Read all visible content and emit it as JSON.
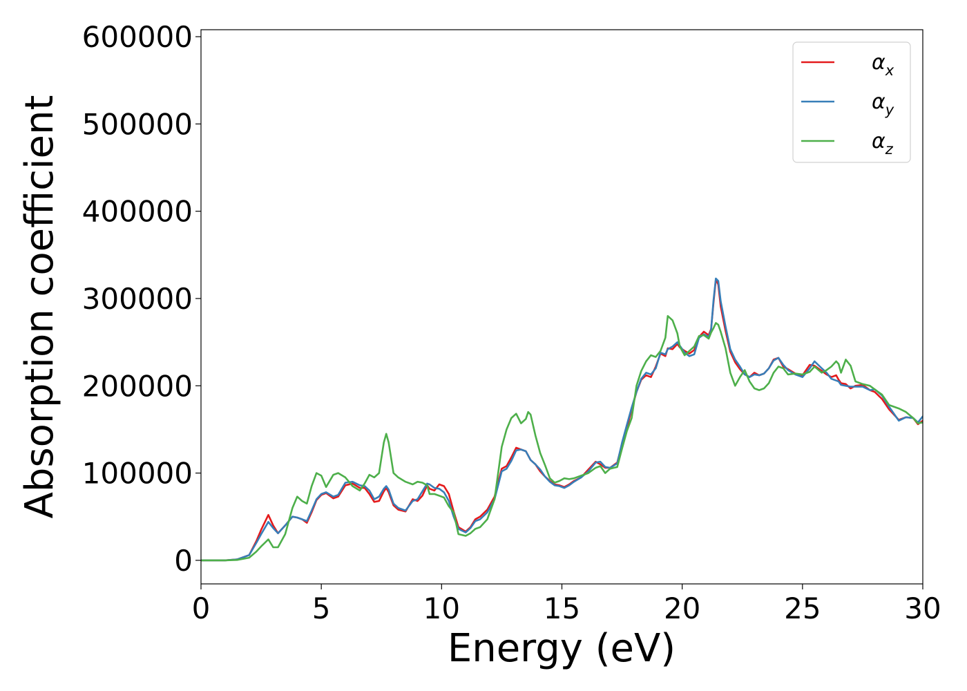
{
  "chart_data": {
    "type": "line",
    "title": "",
    "xlabel": "Energy (eV)",
    "ylabel": "Absorption coefficient",
    "xlim": [
      0,
      30
    ],
    "ylim": [
      -27000,
      608000
    ],
    "xticks": [
      0,
      5,
      10,
      15,
      20,
      25,
      30
    ],
    "xtick_labels": [
      "0",
      "5",
      "10",
      "15",
      "20",
      "25",
      "30"
    ],
    "yticks": [
      0,
      100000,
      200000,
      300000,
      400000,
      500000,
      600000
    ],
    "ytick_labels": [
      "0",
      "100000",
      "200000",
      "300000",
      "400000",
      "500000",
      "600000"
    ],
    "grid": false,
    "legend_position": "top-right",
    "x": [
      0,
      1,
      1.5,
      2,
      2.3,
      2.5,
      2.8,
      3,
      3.2,
      3.5,
      3.8,
      4,
      4.2,
      4.4,
      4.6,
      4.8,
      5,
      5.2,
      5.5,
      5.7,
      6,
      6.3,
      6.6,
      6.8,
      7,
      7.2,
      7.4,
      7.6,
      7.7,
      7.8,
      8,
      8.2,
      8.5,
      8.8,
      9,
      9.2,
      9.4,
      9.5,
      9.7,
      9.9,
      10.1,
      10.3,
      10.5,
      10.7,
      11,
      11.2,
      11.4,
      11.6,
      11.9,
      12.2,
      12.5,
      12.7,
      12.9,
      13.1,
      13.3,
      13.5,
      13.6,
      13.7,
      13.9,
      14.1,
      14.3,
      14.5,
      14.7,
      14.9,
      15.1,
      15.3,
      15.5,
      15.8,
      16.1,
      16.4,
      16.6,
      16.8,
      17,
      17.3,
      17.5,
      17.7,
      17.9,
      18.1,
      18.3,
      18.5,
      18.7,
      18.9,
      19.1,
      19.3,
      19.4,
      19.6,
      19.8,
      19.9,
      20.1,
      20.3,
      20.5,
      20.7,
      20.9,
      21.1,
      21.2,
      21.3,
      21.4,
      21.5,
      21.6,
      21.8,
      22,
      22.2,
      22.4,
      22.6,
      22.8,
      23,
      23.2,
      23.4,
      23.6,
      23.8,
      24,
      24.2,
      24.4,
      24.7,
      25,
      25.3,
      25.5,
      25.8,
      26,
      26.2,
      26.4,
      26.5,
      26.6,
      26.8,
      27,
      27.2,
      27.5,
      27.8,
      28,
      28.3,
      28.6,
      29,
      29.3,
      29.6,
      29.8,
      30
    ],
    "series": [
      {
        "name": "α_x",
        "legend_symbol": "α",
        "legend_subscript": "x",
        "color": "#e41a1c",
        "values": [
          0,
          0,
          1000,
          6000,
          22000,
          35000,
          52000,
          40000,
          31000,
          40000,
          50000,
          49000,
          47000,
          43000,
          55000,
          69000,
          75000,
          77000,
          71000,
          73000,
          86000,
          88000,
          83000,
          83000,
          76000,
          67000,
          68000,
          79000,
          83000,
          78000,
          63000,
          58000,
          56000,
          70000,
          68000,
          74000,
          86000,
          82000,
          80000,
          87000,
          85000,
          76000,
          56000,
          38000,
          33000,
          38000,
          47000,
          50000,
          58000,
          73000,
          105000,
          108000,
          118000,
          129000,
          127000,
          125000,
          120000,
          115000,
          110000,
          102000,
          96000,
          91000,
          87000,
          86000,
          84000,
          87000,
          91000,
          95000,
          104000,
          113000,
          110000,
          106000,
          106000,
          112000,
          133000,
          151000,
          173000,
          193000,
          207000,
          212000,
          210000,
          222000,
          237000,
          234000,
          243000,
          242000,
          248000,
          244000,
          240000,
          237000,
          241000,
          256000,
          262000,
          258000,
          265000,
          295000,
          322000,
          316000,
          291000,
          263000,
          239000,
          227000,
          219000,
          213000,
          210000,
          215000,
          212000,
          214000,
          220000,
          230000,
          232000,
          222000,
          219000,
          214000,
          212000,
          224000,
          223000,
          217000,
          213000,
          210000,
          212000,
          207000,
          203000,
          202000,
          197000,
          200000,
          201000,
          195000,
          193000,
          185000,
          173000,
          161000,
          164000,
          163000,
          156000,
          160000
        ]
      },
      {
        "name": "α_y",
        "legend_symbol": "α",
        "legend_subscript": "y",
        "color": "#377eb8",
        "values": [
          0,
          0,
          1000,
          6000,
          20000,
          30000,
          44000,
          37000,
          31000,
          40000,
          50000,
          49000,
          47000,
          45000,
          57000,
          70000,
          76000,
          78000,
          73000,
          75000,
          89000,
          90000,
          86000,
          85000,
          80000,
          70000,
          73000,
          82000,
          85000,
          81000,
          65000,
          60000,
          57000,
          68000,
          70000,
          79000,
          88000,
          87000,
          83000,
          82000,
          78000,
          68000,
          50000,
          36000,
          32000,
          37000,
          45000,
          47000,
          55000,
          70000,
          102000,
          105000,
          114000,
          126000,
          127000,
          125000,
          120000,
          115000,
          110000,
          104000,
          96000,
          90000,
          86000,
          85000,
          83000,
          86000,
          90000,
          95000,
          102000,
          112000,
          113000,
          107000,
          106000,
          111000,
          135000,
          155000,
          175000,
          193000,
          208000,
          215000,
          213000,
          220000,
          238000,
          236000,
          242000,
          245000,
          250000,
          246000,
          238000,
          234000,
          236000,
          255000,
          259000,
          256000,
          264000,
          298000,
          323000,
          320000,
          297000,
          268000,
          242000,
          230000,
          222000,
          213000,
          210000,
          213000,
          212000,
          214000,
          220000,
          229000,
          232000,
          224000,
          218000,
          213000,
          210000,
          220000,
          228000,
          220000,
          215000,
          208000,
          206000,
          205000,
          201000,
          200000,
          199000,
          199000,
          199000,
          195000,
          196000,
          189000,
          176000,
          160000,
          164000,
          163000,
          158000,
          165000
        ]
      },
      {
        "name": "α_z",
        "legend_symbol": "α",
        "legend_subscript": "z",
        "color": "#4daf4a",
        "values": [
          0,
          0,
          500,
          3000,
          10000,
          16000,
          24000,
          15000,
          15000,
          30000,
          60000,
          73000,
          68000,
          65000,
          85000,
          100000,
          97000,
          84000,
          98000,
          100000,
          95000,
          85000,
          80000,
          88000,
          98000,
          95000,
          100000,
          135000,
          145000,
          135000,
          100000,
          95000,
          90000,
          87000,
          90000,
          89000,
          86000,
          76000,
          76000,
          74000,
          72000,
          62000,
          55000,
          30000,
          28000,
          31000,
          36000,
          38000,
          47000,
          70000,
          130000,
          150000,
          163000,
          168000,
          157000,
          162000,
          170000,
          167000,
          143000,
          123000,
          109000,
          94000,
          89000,
          91000,
          94000,
          93000,
          94000,
          97000,
          100000,
          106000,
          108000,
          100000,
          105000,
          107000,
          128000,
          148000,
          163000,
          200000,
          217000,
          228000,
          235000,
          233000,
          240000,
          255000,
          280000,
          275000,
          260000,
          245000,
          235000,
          240000,
          245000,
          257000,
          258000,
          254000,
          261000,
          266000,
          272000,
          270000,
          262000,
          243000,
          215000,
          200000,
          210000,
          218000,
          205000,
          197000,
          195000,
          197000,
          203000,
          215000,
          222000,
          220000,
          213000,
          214000,
          213000,
          216000,
          222000,
          215000,
          218000,
          222000,
          228000,
          225000,
          215000,
          230000,
          223000,
          205000,
          202000,
          200000,
          196000,
          190000,
          178000,
          174000,
          170000,
          163000,
          157000,
          158000
        ]
      }
    ]
  }
}
